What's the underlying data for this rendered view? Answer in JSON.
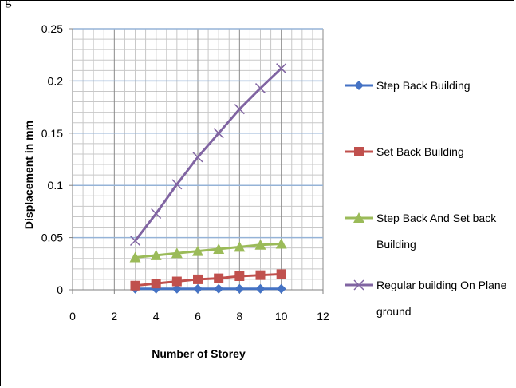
{
  "caption": "g",
  "chart_data": {
    "type": "line",
    "title": "",
    "xlabel": "Number of Storey",
    "ylabel": "Displacement in mm",
    "xlim": [
      0,
      12
    ],
    "ylim": [
      0,
      0.25
    ],
    "xticks": [
      "0",
      "2",
      "4",
      "6",
      "8",
      "10",
      "12"
    ],
    "yticks": [
      "0",
      "0.05",
      "0.1",
      "0.15",
      "0.2",
      "0.25"
    ],
    "grid": true,
    "legend_position": "right",
    "x": [
      3,
      4,
      5,
      6,
      7,
      8,
      9,
      10
    ],
    "series": [
      {
        "name": "Step Back Building",
        "legend_lines": [
          "Step Back Building"
        ],
        "color": "#4472C4",
        "marker": "diamond",
        "values": [
          0.001,
          0.001,
          0.001,
          0.001,
          0.001,
          0.001,
          0.001,
          0.001
        ]
      },
      {
        "name": "Set Back Building",
        "legend_lines": [
          "Set Back Building"
        ],
        "color": "#C0504D",
        "marker": "square",
        "values": [
          0.004,
          0.006,
          0.008,
          0.01,
          0.011,
          0.013,
          0.014,
          0.015
        ]
      },
      {
        "name": "Step Back And Set back Building",
        "legend_lines": [
          "Step Back And Set back",
          "Building"
        ],
        "color": "#9BBB59",
        "marker": "triangle",
        "values": [
          0.031,
          0.033,
          0.035,
          0.037,
          0.039,
          0.041,
          0.043,
          0.044
        ]
      },
      {
        "name": "Regular building On Plane ground",
        "legend_lines": [
          "Regular building On Plane",
          "ground"
        ],
        "color": "#8064A2",
        "marker": "x",
        "values": [
          0.047,
          0.073,
          0.101,
          0.127,
          0.15,
          0.173,
          0.193,
          0.212
        ]
      }
    ]
  }
}
